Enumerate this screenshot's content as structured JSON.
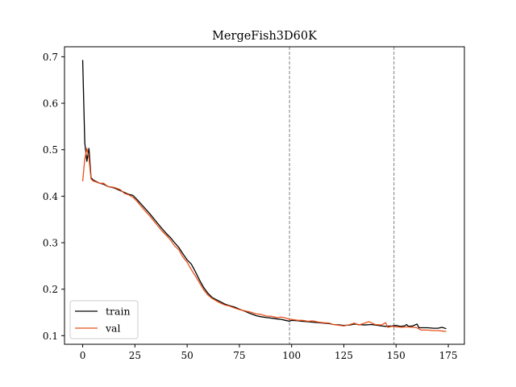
{
  "chart_data": {
    "type": "line",
    "title": "MergeFish3D60K",
    "xlabel": "",
    "ylabel": "",
    "xlim": [
      -8.7,
      182.7
    ],
    "ylim": [
      0.0815,
      0.7215
    ],
    "xticks": [
      0,
      25,
      50,
      75,
      100,
      125,
      150,
      175
    ],
    "yticks": [
      0.1,
      0.2,
      0.3,
      0.4,
      0.5,
      0.6,
      0.7
    ],
    "xtick_labels": [
      "0",
      "25",
      "50",
      "75",
      "100",
      "125",
      "150",
      "175"
    ],
    "ytick_labels": [
      "0.1",
      "0.2",
      "0.3",
      "0.4",
      "0.5",
      "0.6",
      "0.7"
    ],
    "grid": false,
    "legend_position": "lower-left",
    "vlines": [
      99,
      149
    ],
    "colors": {
      "train": "#000000",
      "val": "#e8501a",
      "vline": "#808080"
    },
    "series": [
      {
        "name": "train",
        "color": "#000000",
        "points": [
          [
            0,
            0.693
          ],
          [
            1,
            0.515
          ],
          [
            2,
            0.475
          ],
          [
            3,
            0.503
          ],
          [
            4,
            0.44
          ],
          [
            5,
            0.435
          ],
          [
            8,
            0.428
          ],
          [
            10,
            0.426
          ],
          [
            12,
            0.421
          ],
          [
            15,
            0.418
          ],
          [
            18,
            0.412
          ],
          [
            20,
            0.408
          ],
          [
            22,
            0.404
          ],
          [
            24,
            0.402
          ],
          [
            26,
            0.393
          ],
          [
            28,
            0.383
          ],
          [
            30,
            0.373
          ],
          [
            32,
            0.363
          ],
          [
            34,
            0.352
          ],
          [
            36,
            0.341
          ],
          [
            38,
            0.33
          ],
          [
            40,
            0.32
          ],
          [
            42,
            0.311
          ],
          [
            44,
            0.3
          ],
          [
            46,
            0.29
          ],
          [
            48,
            0.276
          ],
          [
            50,
            0.263
          ],
          [
            52,
            0.254
          ],
          [
            54,
            0.237
          ],
          [
            56,
            0.219
          ],
          [
            58,
            0.203
          ],
          [
            60,
            0.191
          ],
          [
            62,
            0.182
          ],
          [
            65,
            0.175
          ],
          [
            68,
            0.168
          ],
          [
            70,
            0.165
          ],
          [
            73,
            0.161
          ],
          [
            75,
            0.157
          ],
          [
            78,
            0.152
          ],
          [
            80,
            0.148
          ],
          [
            83,
            0.143
          ],
          [
            85,
            0.141
          ],
          [
            88,
            0.139
          ],
          [
            90,
            0.138
          ],
          [
            93,
            0.136
          ],
          [
            95,
            0.135
          ],
          [
            97,
            0.133
          ],
          [
            99,
            0.131
          ],
          [
            100,
            0.133
          ],
          [
            103,
            0.132
          ],
          [
            105,
            0.131
          ],
          [
            108,
            0.13
          ],
          [
            110,
            0.129
          ],
          [
            113,
            0.128
          ],
          [
            115,
            0.127
          ],
          [
            118,
            0.126
          ],
          [
            120,
            0.124
          ],
          [
            123,
            0.123
          ],
          [
            125,
            0.122
          ],
          [
            128,
            0.123
          ],
          [
            130,
            0.125
          ],
          [
            132,
            0.124
          ],
          [
            135,
            0.123
          ],
          [
            138,
            0.124
          ],
          [
            140,
            0.123
          ],
          [
            143,
            0.121
          ],
          [
            145,
            0.12
          ],
          [
            148,
            0.121
          ],
          [
            150,
            0.122
          ],
          [
            152,
            0.12
          ],
          [
            154,
            0.121
          ],
          [
            155,
            0.124
          ],
          [
            156,
            0.12
          ],
          [
            158,
            0.121
          ],
          [
            160,
            0.125
          ],
          [
            161,
            0.117
          ],
          [
            163,
            0.117
          ],
          [
            165,
            0.117
          ],
          [
            168,
            0.116
          ],
          [
            170,
            0.116
          ],
          [
            172,
            0.118
          ],
          [
            174,
            0.115
          ]
        ]
      },
      {
        "name": "val",
        "color": "#e8501a",
        "points": [
          [
            0,
            0.432
          ],
          [
            1,
            0.48
          ],
          [
            2,
            0.503
          ],
          [
            3,
            0.482
          ],
          [
            4,
            0.437
          ],
          [
            5,
            0.433
          ],
          [
            8,
            0.428
          ],
          [
            10,
            0.428
          ],
          [
            12,
            0.421
          ],
          [
            15,
            0.419
          ],
          [
            18,
            0.414
          ],
          [
            20,
            0.406
          ],
          [
            22,
            0.403
          ],
          [
            24,
            0.398
          ],
          [
            26,
            0.389
          ],
          [
            28,
            0.378
          ],
          [
            30,
            0.368
          ],
          [
            32,
            0.358
          ],
          [
            34,
            0.347
          ],
          [
            36,
            0.336
          ],
          [
            38,
            0.325
          ],
          [
            40,
            0.316
          ],
          [
            42,
            0.306
          ],
          [
            44,
            0.293
          ],
          [
            46,
            0.285
          ],
          [
            48,
            0.269
          ],
          [
            50,
            0.258
          ],
          [
            52,
            0.242
          ],
          [
            54,
            0.228
          ],
          [
            56,
            0.213
          ],
          [
            58,
            0.198
          ],
          [
            60,
            0.187
          ],
          [
            62,
            0.18
          ],
          [
            65,
            0.172
          ],
          [
            68,
            0.166
          ],
          [
            70,
            0.164
          ],
          [
            73,
            0.159
          ],
          [
            75,
            0.156
          ],
          [
            78,
            0.153
          ],
          [
            80,
            0.151
          ],
          [
            83,
            0.147
          ],
          [
            85,
            0.146
          ],
          [
            88,
            0.142
          ],
          [
            90,
            0.142
          ],
          [
            93,
            0.139
          ],
          [
            95,
            0.14
          ],
          [
            97,
            0.138
          ],
          [
            99,
            0.135
          ],
          [
            100,
            0.135
          ],
          [
            103,
            0.133
          ],
          [
            105,
            0.133
          ],
          [
            108,
            0.131
          ],
          [
            110,
            0.132
          ],
          [
            113,
            0.129
          ],
          [
            115,
            0.128
          ],
          [
            118,
            0.127
          ],
          [
            120,
            0.124
          ],
          [
            123,
            0.122
          ],
          [
            125,
            0.121
          ],
          [
            128,
            0.124
          ],
          [
            130,
            0.127
          ],
          [
            132,
            0.123
          ],
          [
            135,
            0.127
          ],
          [
            137,
            0.13
          ],
          [
            140,
            0.124
          ],
          [
            143,
            0.123
          ],
          [
            145,
            0.128
          ],
          [
            146,
            0.118
          ],
          [
            148,
            0.12
          ],
          [
            150,
            0.119
          ],
          [
            153,
            0.118
          ],
          [
            155,
            0.119
          ],
          [
            158,
            0.118
          ],
          [
            160,
            0.117
          ],
          [
            162,
            0.112
          ],
          [
            165,
            0.112
          ],
          [
            168,
            0.111
          ],
          [
            170,
            0.111
          ],
          [
            172,
            0.11
          ],
          [
            174,
            0.109
          ]
        ]
      }
    ]
  }
}
